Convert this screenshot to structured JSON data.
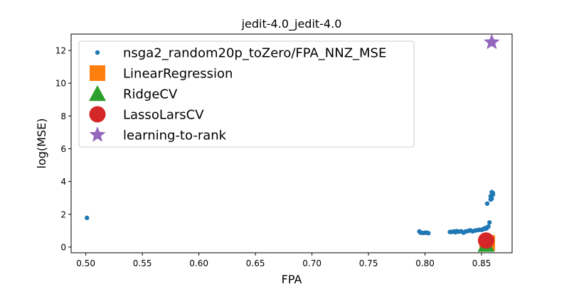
{
  "chart_data": {
    "type": "scatter",
    "title": "jedit-4.0_jedit-4.0",
    "xlabel": "FPA",
    "ylabel": "log(MSE)",
    "xlim": [
      0.487,
      0.877
    ],
    "ylim": [
      -0.35,
      13.0
    ],
    "xticks": [
      0.5,
      0.55,
      0.6,
      0.65,
      0.7,
      0.75,
      0.8,
      0.85
    ],
    "xtick_labels": [
      "0.50",
      "0.55",
      "0.60",
      "0.65",
      "0.70",
      "0.75",
      "0.80",
      "0.85"
    ],
    "yticks": [
      0,
      2,
      4,
      6,
      8,
      10,
      12
    ],
    "ytick_labels": [
      "0",
      "2",
      "4",
      "6",
      "8",
      "10",
      "12"
    ],
    "grid": false,
    "legend_position": "upper-left",
    "series": [
      {
        "name": "nsga2_random20p_toZero/FPA_NNZ_MSE",
        "marker": "circle-small",
        "color": "#1f77b4",
        "points": [
          [
            0.501,
            1.78
          ],
          [
            0.795,
            0.95
          ],
          [
            0.796,
            0.88
          ],
          [
            0.798,
            0.86
          ],
          [
            0.8,
            0.87
          ],
          [
            0.801,
            0.88
          ],
          [
            0.803,
            0.85
          ],
          [
            0.822,
            0.92
          ],
          [
            0.824,
            0.93
          ],
          [
            0.826,
            0.95
          ],
          [
            0.827,
            0.9
          ],
          [
            0.828,
            0.97
          ],
          [
            0.83,
            0.94
          ],
          [
            0.832,
            0.96
          ],
          [
            0.834,
            0.88
          ],
          [
            0.836,
            0.95
          ],
          [
            0.838,
            0.98
          ],
          [
            0.84,
            1.02
          ],
          [
            0.842,
            0.96
          ],
          [
            0.844,
            1.0
          ],
          [
            0.846,
            1.03
          ],
          [
            0.848,
            1.05
          ],
          [
            0.85,
            1.05
          ],
          [
            0.851,
            1.08
          ],
          [
            0.852,
            1.1
          ],
          [
            0.853,
            1.15
          ],
          [
            0.854,
            1.12
          ],
          [
            0.855,
            1.2
          ],
          [
            0.856,
            1.25
          ],
          [
            0.857,
            1.5
          ],
          [
            0.855,
            2.65
          ],
          [
            0.858,
            2.9
          ],
          [
            0.858,
            3.1
          ],
          [
            0.859,
            3.35
          ],
          [
            0.86,
            3.3
          ],
          [
            0.86,
            3.2
          ],
          [
            0.859,
            2.95
          ]
        ]
      },
      {
        "name": "LinearRegression",
        "marker": "square",
        "color": "#ff7f0e",
        "points": [
          [
            0.855,
            0.25
          ]
        ]
      },
      {
        "name": "RidgeCV",
        "marker": "triangle",
        "color": "#2ca02c",
        "points": [
          [
            0.854,
            0.15
          ]
        ]
      },
      {
        "name": "LassoLarsCV",
        "marker": "circle-large",
        "color": "#d62728",
        "points": [
          [
            0.854,
            0.4
          ]
        ]
      },
      {
        "name": "learning-to-rank",
        "marker": "star",
        "color": "#9467bd",
        "points": [
          [
            0.859,
            12.5
          ]
        ]
      }
    ]
  }
}
